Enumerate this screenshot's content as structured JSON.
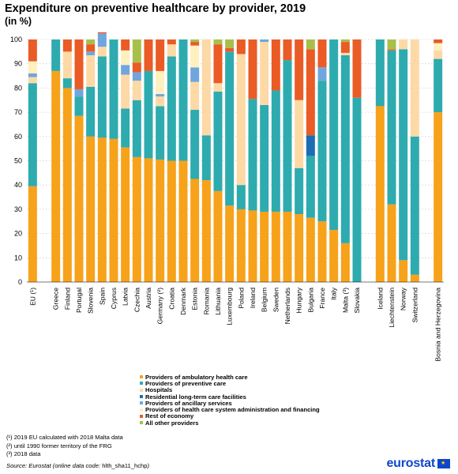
{
  "title": "Expenditure on preventive healthcare by provider, 2019",
  "subtitle": "(in %)",
  "chart_data": {
    "type": "bar",
    "stacked": true,
    "ylim": [
      0,
      100
    ],
    "yticks": [
      0,
      10,
      20,
      30,
      40,
      50,
      60,
      70,
      80,
      90,
      100
    ],
    "grid": true,
    "legend_position": "bottom",
    "categories": [
      "EU (¹)",
      "",
      "Greece",
      "Finland",
      "Portugal",
      "Slovenia",
      "Spain",
      "Cyprus",
      "Latvia",
      "Czechia",
      "Austria",
      "Germany (²)",
      "Croatia",
      "Denmark",
      "Estonia",
      "Romania",
      "Lithuania",
      "Luxembourg",
      "Poland",
      "Ireland",
      "Belgium",
      "Sweden",
      "Netherlands",
      "Hungary",
      "Bulgaria",
      "France",
      "Italy",
      "Malta (³)",
      "Slovakia",
      "",
      "Iceland",
      "Liechtenstein",
      "Norway",
      "Switzerland",
      "",
      "Bosnia and Herzegovina"
    ],
    "series": [
      {
        "name": "Providers of ambulatory health care",
        "color": "#f7a21b",
        "values": [
          39.5,
          null,
          87,
          80,
          68.5,
          60,
          59.5,
          59,
          55.5,
          51.5,
          51,
          50.5,
          50,
          50,
          42.5,
          42,
          37.5,
          31.5,
          30,
          29.5,
          29,
          29,
          29,
          28,
          26.5,
          25,
          21.5,
          16,
          0,
          null,
          72.5,
          32,
          9,
          3,
          null,
          70
        ]
      },
      {
        "name": "Providers of preventive care",
        "color": "#2eabae",
        "values": [
          42.5,
          null,
          13,
          4,
          8,
          20.5,
          33.5,
          41,
          16,
          23.5,
          36,
          22,
          43,
          50,
          28.5,
          18.5,
          41,
          63.5,
          10,
          46,
          44,
          50,
          62.5,
          19,
          25.5,
          58,
          78.5,
          77.5,
          76,
          null,
          27.5,
          63.5,
          87,
          57,
          null,
          22
        ]
      },
      {
        "name": "Hospitals",
        "color": "#fdd9a6",
        "values": [
          2.5,
          null,
          0,
          11,
          0,
          13,
          4,
          0,
          14,
          8,
          0,
          4,
          5,
          0,
          11.5,
          39.5,
          3.5,
          0,
          54,
          0,
          26,
          0,
          0,
          28,
          0,
          0,
          0,
          1,
          0,
          null,
          0,
          0,
          4,
          40,
          null,
          3.5
        ]
      },
      {
        "name": "Residential long-term care facilities",
        "color": "#1c6db4",
        "values": [
          0,
          null,
          0,
          0,
          0,
          0,
          0,
          0,
          0,
          0,
          0,
          0,
          0,
          0,
          0,
          0,
          0,
          0,
          0,
          0,
          0,
          0,
          0,
          0,
          8.5,
          0,
          0,
          0,
          0,
          null,
          0,
          0,
          0,
          0,
          null,
          0
        ]
      },
      {
        "name": "Providers of ancillary services",
        "color": "#70a6dd",
        "values": [
          1.5,
          null,
          0,
          0,
          3,
          1.5,
          5.5,
          0,
          4,
          3.5,
          0,
          1,
          0,
          0,
          6,
          0,
          0,
          0,
          0,
          0,
          1,
          0,
          0,
          0,
          0,
          5.5,
          0,
          0,
          0,
          null,
          0,
          0,
          0,
          0,
          null,
          0
        ]
      },
      {
        "name": "Providers of health care system administration and financing",
        "color": "#fff0c0",
        "values": [
          5,
          null,
          0,
          0,
          0,
          0,
          0,
          0,
          6,
          0,
          0,
          9.5,
          0,
          0,
          9,
          0,
          0,
          0,
          0,
          0,
          0,
          0,
          0,
          0,
          0,
          0,
          0,
          0,
          0,
          null,
          0,
          0,
          0,
          0,
          null,
          3
        ]
      },
      {
        "name": "Rest of economy",
        "color": "#ea5b25",
        "values": [
          9,
          null,
          0,
          5,
          20.5,
          3,
          0.5,
          0,
          4.5,
          4,
          13,
          13,
          2,
          0,
          1.5,
          0,
          16,
          1.5,
          6,
          24.5,
          0,
          21,
          8.5,
          25,
          35.5,
          11.5,
          0,
          4.5,
          24,
          null,
          0,
          0.5,
          0,
          0,
          null,
          1.5
        ]
      },
      {
        "name": "All other providers",
        "color": "#a8c04a",
        "values": [
          0,
          null,
          0,
          0,
          0,
          2,
          0,
          0,
          0,
          9.5,
          0,
          0,
          0,
          0,
          1,
          0,
          2,
          3.5,
          0,
          0,
          0,
          0,
          0,
          0,
          4,
          0,
          0,
          1,
          0,
          null,
          0,
          4,
          0,
          0,
          null,
          0
        ]
      }
    ]
  },
  "notes": [
    "(¹) 2019 EU calculated with 2018 Malta data",
    "(²) until 1990 former territory of the FRG",
    "(³) 2018 data"
  ],
  "source": {
    "label": "Source:",
    "text": "Eurostat (online data code:",
    "code": "hlth_sha11_hchp",
    "close": ")"
  },
  "logo": {
    "text": "eurostat",
    "icon": "eu-flag-icon"
  }
}
